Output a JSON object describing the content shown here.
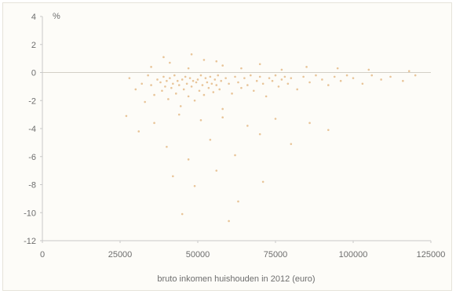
{
  "chart_data": {
    "type": "scatter",
    "title": "",
    "xlabel": "bruto inkomen huishouden in 2012 (euro)",
    "ylabel": "%",
    "xlim": [
      0,
      125000
    ],
    "ylim": [
      -12,
      4
    ],
    "x_ticks": [
      0,
      25000,
      50000,
      75000,
      100000,
      125000
    ],
    "x_tick_labels": [
      "0",
      "25000",
      "50000",
      "75000",
      "100000",
      "125000"
    ],
    "y_ticks": [
      4,
      2,
      0,
      -2,
      -4,
      -6,
      -8,
      -10,
      -12
    ],
    "y_tick_labels": [
      "4",
      "2",
      "0",
      "-2",
      "-4",
      "-6",
      "-8",
      "-10",
      "-12"
    ],
    "reference_line_y": 0,
    "colors": {
      "points": "#e0b178",
      "axis": "#c9c9c9",
      "zero_line": "#d3d0c6",
      "text": "#6d6d6d"
    },
    "series": [
      {
        "points": [
          [
            28000,
            -0.4
          ],
          [
            30000,
            -1.2
          ],
          [
            32000,
            -0.8
          ],
          [
            33000,
            -2.1
          ],
          [
            34000,
            -0.2
          ],
          [
            35000,
            -0.9
          ],
          [
            36000,
            -1.6
          ],
          [
            37000,
            -0.5
          ],
          [
            38000,
            -0.7
          ],
          [
            38500,
            -1.3
          ],
          [
            39000,
            -0.3
          ],
          [
            39500,
            -1.0
          ],
          [
            40000,
            -0.6
          ],
          [
            40500,
            -1.9
          ],
          [
            41000,
            -0.4
          ],
          [
            41500,
            -1.1
          ],
          [
            42000,
            -0.8
          ],
          [
            42500,
            -0.2
          ],
          [
            43000,
            -1.5
          ],
          [
            43500,
            -0.6
          ],
          [
            44000,
            -0.9
          ],
          [
            44500,
            -2.4
          ],
          [
            45000,
            -0.5
          ],
          [
            45500,
            -1.2
          ],
          [
            46000,
            -0.3
          ],
          [
            46500,
            -0.8
          ],
          [
            47000,
            -1.7
          ],
          [
            47500,
            -0.4
          ],
          [
            48000,
            -1.0
          ],
          [
            48500,
            -0.6
          ],
          [
            49000,
            -2.0
          ],
          [
            49500,
            -0.7
          ],
          [
            50000,
            -0.5
          ],
          [
            50500,
            -1.3
          ],
          [
            51000,
            -0.2
          ],
          [
            51500,
            -0.9
          ],
          [
            52000,
            -1.6
          ],
          [
            52500,
            -0.4
          ],
          [
            53000,
            -0.7
          ],
          [
            53500,
            -1.1
          ],
          [
            54000,
            -0.3
          ],
          [
            54500,
            -0.8
          ],
          [
            55000,
            -1.4
          ],
          [
            55500,
            -0.5
          ],
          [
            56000,
            -0.9
          ],
          [
            56500,
            -0.2
          ],
          [
            57000,
            -1.2
          ],
          [
            57500,
            -0.6
          ],
          [
            58000,
            -2.6
          ],
          [
            59000,
            -0.4
          ],
          [
            60000,
            -0.8
          ],
          [
            61000,
            -1.5
          ],
          [
            62000,
            -0.3
          ],
          [
            63000,
            -0.7
          ],
          [
            64000,
            -1.1
          ],
          [
            65000,
            -0.4
          ],
          [
            66000,
            -0.9
          ],
          [
            67000,
            -0.2
          ],
          [
            68000,
            -1.3
          ],
          [
            69000,
            -0.6
          ],
          [
            70000,
            -0.3
          ],
          [
            71000,
            -0.8
          ],
          [
            72000,
            -1.7
          ],
          [
            73000,
            -0.4
          ],
          [
            74000,
            -0.6
          ],
          [
            75000,
            -0.2
          ],
          [
            76000,
            -1.0
          ],
          [
            77000,
            -0.5
          ],
          [
            78000,
            -0.3
          ],
          [
            79000,
            -0.8
          ],
          [
            80000,
            -0.4
          ],
          [
            82000,
            -1.2
          ],
          [
            84000,
            -0.3
          ],
          [
            86000,
            -0.7
          ],
          [
            88000,
            -0.2
          ],
          [
            90000,
            -0.5
          ],
          [
            92000,
            -0.9
          ],
          [
            94000,
            -0.3
          ],
          [
            96000,
            -0.6
          ],
          [
            98000,
            -0.2
          ],
          [
            100000,
            -0.4
          ],
          [
            103000,
            -0.8
          ],
          [
            106000,
            -0.2
          ],
          [
            109000,
            -0.5
          ],
          [
            112000,
            -0.3
          ],
          [
            116000,
            -0.6
          ],
          [
            120000,
            -0.2
          ],
          [
            27000,
            -3.1
          ],
          [
            31000,
            -4.2
          ],
          [
            36000,
            -3.6
          ],
          [
            40000,
            -5.3
          ],
          [
            44000,
            -3.0
          ],
          [
            47000,
            -6.2
          ],
          [
            51000,
            -3.4
          ],
          [
            54000,
            -4.8
          ],
          [
            58000,
            -3.2
          ],
          [
            62000,
            -5.9
          ],
          [
            66000,
            -3.8
          ],
          [
            70000,
            -4.4
          ],
          [
            75000,
            -3.3
          ],
          [
            80000,
            -5.1
          ],
          [
            86000,
            -3.6
          ],
          [
            92000,
            -4.1
          ],
          [
            42000,
            -7.4
          ],
          [
            49000,
            -8.1
          ],
          [
            56000,
            -7.0
          ],
          [
            63000,
            -9.2
          ],
          [
            71000,
            -7.8
          ],
          [
            45000,
            -10.1
          ],
          [
            60000,
            -10.6
          ],
          [
            35000,
            0.4
          ],
          [
            41000,
            0.7
          ],
          [
            47000,
            0.3
          ],
          [
            52000,
            0.9
          ],
          [
            58000,
            0.5
          ],
          [
            64000,
            0.3
          ],
          [
            70000,
            0.6
          ],
          [
            77000,
            0.2
          ],
          [
            85000,
            0.4
          ],
          [
            95000,
            0.3
          ],
          [
            105000,
            0.2
          ],
          [
            118000,
            0.1
          ],
          [
            39000,
            1.1
          ],
          [
            48000,
            1.3
          ],
          [
            56000,
            0.8
          ]
        ]
      }
    ]
  }
}
